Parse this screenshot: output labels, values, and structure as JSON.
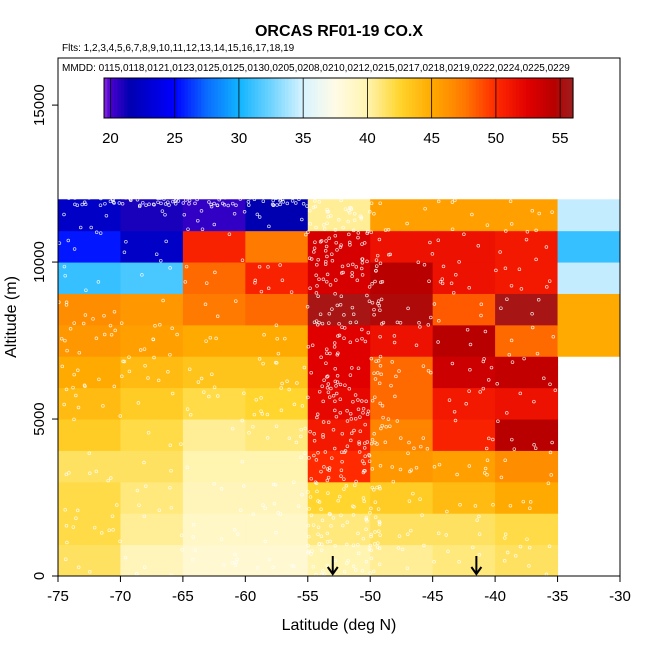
{
  "chart_data": {
    "type": "heatmap",
    "title": "ORCAS RF01-19 CO.X",
    "flights_text": "Flts: 1,2,3,4,5,6,7,8,9,10,11,12,13,14,15,16,17,18,19",
    "dates_text": "MMDD: 0115,0118,0121,0123,0125,0125,0130,0205,0208,0210,0212,0215,0217,0218,0219,0222,0224,0225,0229",
    "xlabel": "Latitude (deg N)",
    "ylabel": "Altitude (m)",
    "xlim": [
      -75,
      -30
    ],
    "ylim": [
      0,
      16500
    ],
    "x_ticks": [
      -75,
      -70,
      -65,
      -60,
      -55,
      -50,
      -45,
      -40,
      -35,
      -30
    ],
    "y_ticks": [
      0,
      5000,
      10000,
      15000
    ],
    "colorbar": {
      "min": 19.5,
      "max": 56,
      "ticks": [
        20,
        25,
        30,
        35,
        40,
        45,
        50,
        55
      ],
      "stops": [
        {
          "v": 19.5,
          "color": "#8a2be2"
        },
        {
          "v": 20.0,
          "color": "#4b00d0"
        },
        {
          "v": 21.5,
          "color": "#0000b0"
        },
        {
          "v": 25.0,
          "color": "#0000ff"
        },
        {
          "v": 27.5,
          "color": "#0a6cff"
        },
        {
          "v": 30.0,
          "color": "#10b4ff"
        },
        {
          "v": 32.5,
          "color": "#6fd3ff"
        },
        {
          "v": 35.0,
          "color": "#d8f4ff"
        },
        {
          "v": 37.5,
          "color": "#fffbe6"
        },
        {
          "v": 40.0,
          "color": "#fff4b0"
        },
        {
          "v": 42.5,
          "color": "#ffd52e"
        },
        {
          "v": 45.0,
          "color": "#ffaa00"
        },
        {
          "v": 47.5,
          "color": "#ff7a00"
        },
        {
          "v": 50.0,
          "color": "#ff2a00"
        },
        {
          "v": 52.5,
          "color": "#e00000"
        },
        {
          "v": 54.5,
          "color": "#b80000"
        },
        {
          "v": 56.0,
          "color": "#9e1f1f"
        }
      ]
    },
    "x_bins": [
      -75,
      -70,
      -65,
      -60,
      -55,
      -50,
      -45,
      -40,
      -35,
      -30
    ],
    "y_bins": [
      0,
      1000,
      2000,
      3000,
      4000,
      5000,
      6000,
      7000,
      8000,
      9000,
      10000,
      11000,
      12000
    ],
    "grid": [
      [
        41.5,
        39.5,
        38.5,
        38.5,
        40.0,
        40.5,
        41.0,
        41.5,
        null
      ],
      [
        42.0,
        40.5,
        39.0,
        39.0,
        41.0,
        41.5,
        41.5,
        42.0,
        null
      ],
      [
        42.0,
        41.0,
        39.5,
        39.5,
        42.5,
        43.0,
        44.0,
        45.0,
        null
      ],
      [
        41.5,
        41.5,
        40.0,
        40.0,
        50.0,
        46.0,
        45.5,
        46.5,
        null
      ],
      [
        43.0,
        42.0,
        40.5,
        41.0,
        51.0,
        47.0,
        50.5,
        54.5,
        null
      ],
      [
        44.0,
        43.0,
        42.0,
        42.5,
        52.0,
        48.0,
        51.0,
        51.5,
        null
      ],
      [
        45.0,
        44.0,
        43.5,
        43.5,
        52.5,
        48.0,
        53.5,
        54.0,
        null
      ],
      [
        46.0,
        45.5,
        45.0,
        45.0,
        52.5,
        51.5,
        54.5,
        48.0,
        45.0
      ],
      [
        46.5,
        46.0,
        47.5,
        48.0,
        55.5,
        55.0,
        48.5,
        55.5,
        45.0
      ],
      [
        31.0,
        31.5,
        48.0,
        50.5,
        53.0,
        54.5,
        51.5,
        51.0,
        34.5
      ],
      [
        25.5,
        22.5,
        50.5,
        47.5,
        53.0,
        51.5,
        51.5,
        51.0,
        31.0
      ],
      [
        22.5,
        21.0,
        20.5,
        21.5,
        40.5,
        45.5,
        45.5,
        45.5,
        34.5
      ]
    ],
    "markers": [
      {
        "lat": -53,
        "label": "down-arrow"
      },
      {
        "lat": -41.5,
        "label": "down-arrow"
      }
    ]
  }
}
